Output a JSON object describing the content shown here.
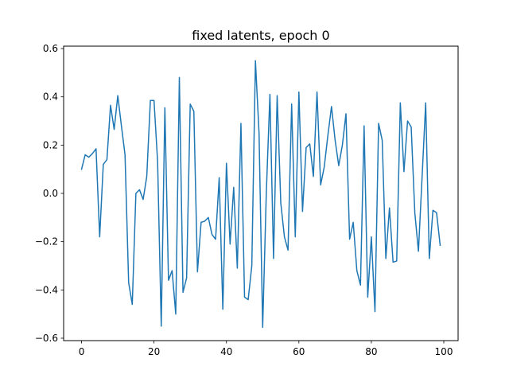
{
  "chart_data": {
    "type": "line",
    "title": "fixed latents, epoch 0",
    "xlabel": "",
    "ylabel": "",
    "xlim": [
      -4.95,
      103.95
    ],
    "ylim": [
      -0.61,
      0.61
    ],
    "xticks": [
      0,
      20,
      40,
      60,
      80,
      100
    ],
    "yticks": [
      -0.6,
      -0.4,
      -0.2,
      0.0,
      0.2,
      0.4,
      0.6
    ],
    "xtick_labels": [
      "0",
      "20",
      "40",
      "60",
      "80",
      "100"
    ],
    "ytick_labels": [
      "−0.6",
      "−0.4",
      "−0.2",
      "0.0",
      "0.2",
      "0.4",
      "0.6"
    ],
    "grid": false,
    "legend": "none",
    "series": [
      {
        "color": "#1f77b4",
        "x": [
          0,
          1,
          2,
          3,
          4,
          5,
          6,
          7,
          8,
          9,
          10,
          11,
          12,
          13,
          14,
          15,
          16,
          17,
          18,
          19,
          20,
          21,
          22,
          23,
          24,
          25,
          26,
          27,
          28,
          29,
          30,
          31,
          32,
          33,
          34,
          35,
          36,
          37,
          38,
          39,
          40,
          41,
          42,
          43,
          44,
          45,
          46,
          47,
          48,
          49,
          50,
          51,
          52,
          53,
          54,
          55,
          56,
          57,
          58,
          59,
          60,
          61,
          62,
          63,
          64,
          65,
          66,
          67,
          68,
          69,
          70,
          71,
          72,
          73,
          74,
          75,
          76,
          77,
          78,
          79,
          80,
          81,
          82,
          83,
          84,
          85,
          86,
          87,
          88,
          89,
          90,
          91,
          92,
          93,
          94,
          95,
          96,
          97,
          98,
          99
        ],
        "values": [
          0.1,
          0.16,
          0.15,
          0.165,
          0.185,
          -0.18,
          0.12,
          0.14,
          0.365,
          0.265,
          0.405,
          0.28,
          0.16,
          -0.37,
          -0.46,
          0.0,
          0.015,
          -0.025,
          0.07,
          0.385,
          0.385,
          0.13,
          -0.55,
          0.355,
          -0.36,
          -0.32,
          -0.5,
          0.48,
          -0.41,
          -0.35,
          0.37,
          0.34,
          -0.325,
          -0.12,
          -0.115,
          -0.1,
          -0.17,
          -0.19,
          0.065,
          -0.48,
          0.125,
          -0.21,
          0.025,
          -0.31,
          0.29,
          -0.43,
          -0.44,
          -0.3,
          0.55,
          0.25,
          -0.555,
          0.0,
          0.41,
          -0.27,
          0.405,
          -0.04,
          -0.18,
          -0.235,
          0.37,
          -0.18,
          0.42,
          -0.075,
          0.19,
          0.205,
          0.07,
          0.42,
          0.035,
          0.11,
          0.24,
          0.36,
          0.22,
          0.115,
          0.2,
          0.33,
          -0.19,
          -0.12,
          -0.32,
          -0.38,
          0.28,
          -0.43,
          -0.18,
          -0.49,
          0.29,
          0.22,
          -0.27,
          -0.06,
          -0.285,
          -0.28,
          0.375,
          0.09,
          0.3,
          0.275,
          -0.08,
          -0.24,
          0.065,
          0.375,
          -0.27,
          -0.07,
          -0.08,
          -0.215
        ]
      }
    ]
  }
}
